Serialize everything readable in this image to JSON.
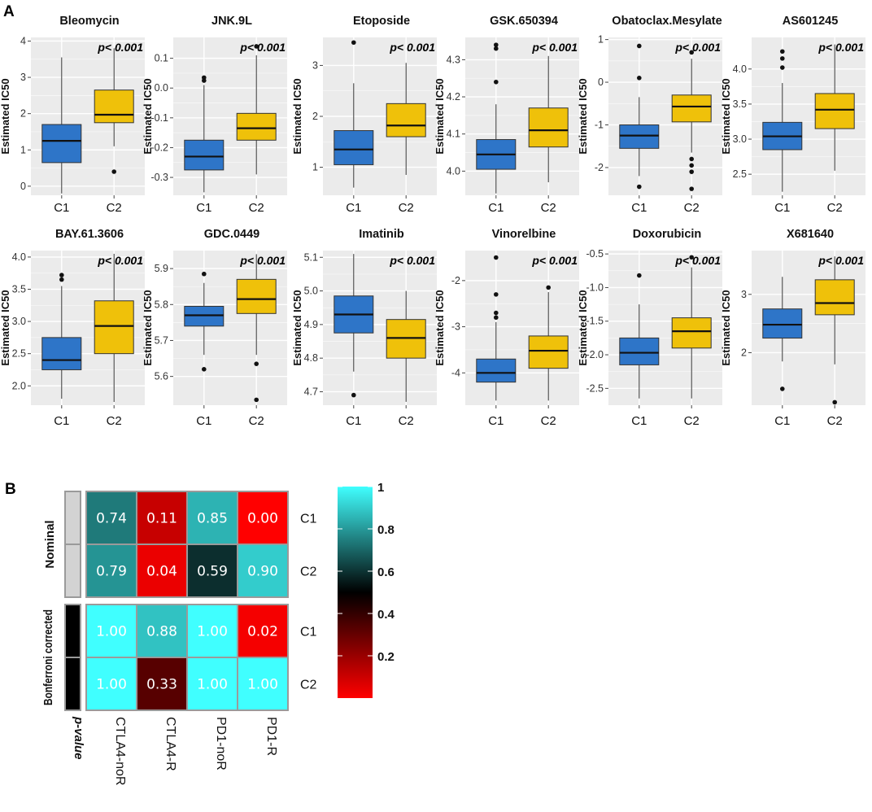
{
  "panel_a_label": "A",
  "panel_b_label": "B",
  "y_axis_label": "Estimated IC50",
  "colors": {
    "C1": "#2E75C8",
    "C2": "#EFC10A",
    "panel_bg": "#EBEBEB",
    "grid": "#FFFFFF"
  },
  "chart_data": [
    {
      "type": "box",
      "title": "Bleomycin",
      "annotation": "p< 0.001",
      "categories": [
        "C1",
        "C2"
      ],
      "ylim": [
        -0.25,
        4.1
      ],
      "yticks": [
        0,
        1,
        2,
        3,
        4
      ],
      "ytick_labels": [
        "0",
        "1",
        "2",
        "3",
        "4"
      ],
      "boxes": [
        {
          "group": "C1",
          "min": -0.2,
          "q1": 0.65,
          "median": 1.25,
          "q3": 1.7,
          "max": 3.55,
          "outliers": []
        },
        {
          "group": "C2",
          "min": 1.1,
          "q1": 1.75,
          "median": 1.97,
          "q3": 2.65,
          "max": 3.8,
          "outliers": [
            0.4
          ]
        }
      ]
    },
    {
      "type": "box",
      "title": "JNK.9L",
      "annotation": "p< 0.001",
      "categories": [
        "C1",
        "C2"
      ],
      "ylim": [
        -0.36,
        0.17
      ],
      "yticks": [
        -0.3,
        -0.2,
        -0.1,
        0.0,
        0.1
      ],
      "ytick_labels": [
        "-0.3",
        "-0.2",
        "-0.1",
        "0.0",
        "0.1"
      ],
      "boxes": [
        {
          "group": "C1",
          "min": -0.35,
          "q1": -0.275,
          "median": -0.23,
          "q3": -0.175,
          "max": 0.01,
          "outliers": [
            0.025,
            0.035
          ]
        },
        {
          "group": "C2",
          "min": -0.29,
          "q1": -0.175,
          "median": -0.135,
          "q3": -0.085,
          "max": 0.11,
          "outliers": [
            0.14
          ]
        }
      ]
    },
    {
      "type": "box",
      "title": "Etoposide",
      "annotation": "p< 0.001",
      "categories": [
        "C1",
        "C2"
      ],
      "ylim": [
        0.45,
        3.55
      ],
      "yticks": [
        1,
        2,
        3
      ],
      "ytick_labels": [
        "1",
        "2",
        "3"
      ],
      "boxes": [
        {
          "group": "C1",
          "min": 0.6,
          "q1": 1.05,
          "median": 1.35,
          "q3": 1.72,
          "max": 2.65,
          "outliers": [
            3.45
          ]
        },
        {
          "group": "C2",
          "min": 0.85,
          "q1": 1.6,
          "median": 1.82,
          "q3": 2.25,
          "max": 3.05,
          "outliers": []
        }
      ]
    },
    {
      "type": "box",
      "title": "GSK.650394",
      "annotation": "p< 0.001",
      "categories": [
        "C1",
        "C2"
      ],
      "ylim": [
        3.935,
        4.36
      ],
      "yticks": [
        4.0,
        4.1,
        4.2,
        4.3
      ],
      "ytick_labels": [
        "4.0",
        "4.1",
        "4.2",
        "4.3"
      ],
      "boxes": [
        {
          "group": "C1",
          "min": 3.94,
          "q1": 4.005,
          "median": 4.045,
          "q3": 4.085,
          "max": 4.18,
          "outliers": [
            4.24,
            4.33,
            4.34
          ]
        },
        {
          "group": "C2",
          "min": 3.97,
          "q1": 4.065,
          "median": 4.11,
          "q3": 4.17,
          "max": 4.31,
          "outliers": []
        }
      ]
    },
    {
      "type": "box",
      "title": "Obatoclax.Mesylate",
      "annotation": "p< 0.001",
      "categories": [
        "C1",
        "C2"
      ],
      "ylim": [
        -2.65,
        1.05
      ],
      "yticks": [
        -2,
        -1,
        0,
        1
      ],
      "ytick_labels": [
        "-2",
        "-1",
        "0",
        "1"
      ],
      "boxes": [
        {
          "group": "C1",
          "min": -2.2,
          "q1": -1.55,
          "median": -1.25,
          "q3": -1.0,
          "max": -0.35,
          "outliers": [
            0.1,
            0.85,
            -2.45
          ]
        },
        {
          "group": "C2",
          "min": -1.65,
          "q1": -0.93,
          "median": -0.57,
          "q3": -0.3,
          "max": 0.55,
          "outliers": [
            0.7,
            -1.8,
            -1.95,
            -2.1,
            -2.5
          ]
        }
      ]
    },
    {
      "type": "box",
      "title": "AS601245",
      "annotation": "p< 0.001",
      "categories": [
        "C1",
        "C2"
      ],
      "ylim": [
        2.2,
        4.45
      ],
      "yticks": [
        2.5,
        3.0,
        3.5,
        4.0
      ],
      "ytick_labels": [
        "2.5",
        "3.0",
        "3.5",
        "4.0"
      ],
      "boxes": [
        {
          "group": "C1",
          "min": 2.25,
          "q1": 2.85,
          "median": 3.04,
          "q3": 3.24,
          "max": 3.8,
          "outliers": [
            4.02,
            4.15,
            4.25
          ]
        },
        {
          "group": "C2",
          "min": 2.55,
          "q1": 3.15,
          "median": 3.42,
          "q3": 3.65,
          "max": 4.35,
          "outliers": []
        }
      ]
    },
    {
      "type": "box",
      "title": "BAY.61.3606",
      "annotation": "p< 0.001",
      "categories": [
        "C1",
        "C2"
      ],
      "ylim": [
        1.7,
        4.1
      ],
      "yticks": [
        2.0,
        2.5,
        3.0,
        3.5,
        4.0
      ],
      "ytick_labels": [
        "2.0",
        "2.5",
        "3.0",
        "3.5",
        "4.0"
      ],
      "boxes": [
        {
          "group": "C1",
          "min": 1.8,
          "q1": 2.25,
          "median": 2.4,
          "q3": 2.75,
          "max": 3.55,
          "outliers": [
            3.65,
            3.72
          ]
        },
        {
          "group": "C2",
          "min": 1.75,
          "q1": 2.5,
          "median": 2.93,
          "q3": 3.32,
          "max": 4.05,
          "outliers": []
        }
      ]
    },
    {
      "type": "box",
      "title": "GDC.0449",
      "annotation": "p< 0.001",
      "categories": [
        "C1",
        "C2"
      ],
      "ylim": [
        5.52,
        5.95
      ],
      "yticks": [
        5.6,
        5.7,
        5.8,
        5.9
      ],
      "ytick_labels": [
        "5.6",
        "5.7",
        "5.8",
        "5.9"
      ],
      "boxes": [
        {
          "group": "C1",
          "min": 5.66,
          "q1": 5.74,
          "median": 5.77,
          "q3": 5.795,
          "max": 5.86,
          "outliers": [
            5.885,
            5.62
          ]
        },
        {
          "group": "C2",
          "min": 5.66,
          "q1": 5.775,
          "median": 5.815,
          "q3": 5.87,
          "max": 5.94,
          "outliers": [
            5.635,
            5.535
          ]
        }
      ]
    },
    {
      "type": "box",
      "title": "Imatinib",
      "annotation": "p< 0.001",
      "categories": [
        "C1",
        "C2"
      ],
      "ylim": [
        4.66,
        5.12
      ],
      "yticks": [
        4.7,
        4.8,
        4.9,
        5.0,
        5.1
      ],
      "ytick_labels": [
        "4.7",
        "4.8",
        "4.9",
        "5.0",
        "5.1"
      ],
      "boxes": [
        {
          "group": "C1",
          "min": 4.76,
          "q1": 4.875,
          "median": 4.93,
          "q3": 4.985,
          "max": 5.11,
          "outliers": [
            4.69
          ]
        },
        {
          "group": "C2",
          "min": 4.67,
          "q1": 4.8,
          "median": 4.86,
          "q3": 4.915,
          "max": 5.0,
          "outliers": []
        }
      ]
    },
    {
      "type": "box",
      "title": "Vinorelbine",
      "annotation": "p< 0.001",
      "categories": [
        "C1",
        "C2"
      ],
      "ylim": [
        -4.7,
        -1.35
      ],
      "yticks": [
        -4,
        -3,
        -2
      ],
      "ytick_labels": [
        "-4",
        "-3",
        "-2"
      ],
      "boxes": [
        {
          "group": "C1",
          "min": -4.6,
          "q1": -4.2,
          "median": -4.0,
          "q3": -3.7,
          "max": -2.9,
          "outliers": [
            -1.5,
            -2.3,
            -2.7,
            -2.8
          ]
        },
        {
          "group": "C2",
          "min": -4.6,
          "q1": -3.9,
          "median": -3.52,
          "q3": -3.2,
          "max": -2.25,
          "outliers": [
            -2.15
          ]
        }
      ]
    },
    {
      "type": "box",
      "title": "Doxorubicin",
      "annotation": "p< 0.001",
      "categories": [
        "C1",
        "C2"
      ],
      "ylim": [
        -2.75,
        -0.45
      ],
      "yticks": [
        -2.5,
        -2.0,
        -1.5,
        -1.0,
        -0.5
      ],
      "ytick_labels": [
        "-2.5",
        "-2.0",
        "-1.5",
        "-1.0",
        "-0.5"
      ],
      "boxes": [
        {
          "group": "C1",
          "min": -2.65,
          "q1": -2.15,
          "median": -1.97,
          "q3": -1.75,
          "max": -1.25,
          "outliers": [
            -0.82
          ]
        },
        {
          "group": "C2",
          "min": -2.65,
          "q1": -1.9,
          "median": -1.65,
          "q3": -1.45,
          "max": -0.7,
          "outliers": [
            -0.55
          ]
        }
      ]
    },
    {
      "type": "box",
      "title": "X681640",
      "annotation": "p< 0.001",
      "categories": [
        "C1",
        "C2"
      ],
      "ylim": [
        1.1,
        3.75
      ],
      "yticks": [
        2,
        3
      ],
      "ytick_labels": [
        "2",
        "3"
      ],
      "boxes": [
        {
          "group": "C1",
          "min": 1.85,
          "q1": 2.25,
          "median": 2.48,
          "q3": 2.75,
          "max": 3.3,
          "outliers": [
            1.38
          ]
        },
        {
          "group": "C2",
          "min": 1.8,
          "q1": 2.65,
          "median": 2.85,
          "q3": 3.25,
          "max": 3.65,
          "outliers": [
            1.15
          ]
        }
      ]
    },
    {
      "type": "heatmap",
      "title": "",
      "columns": [
        "CTLA4-noR",
        "CTLA4-R",
        "PD1-noR",
        "PD1-R"
      ],
      "row_labels": [
        "C1",
        "C2",
        "C1",
        "C2"
      ],
      "row_groups": [
        {
          "name": "Nominal",
          "rows": [
            0,
            1
          ],
          "color": "#D3D3D3"
        },
        {
          "name": "Bonferroni corrected",
          "rows": [
            2,
            3
          ],
          "color": "#000000"
        }
      ],
      "annotation_title": "p-value",
      "values": [
        [
          0.74,
          0.11,
          0.85,
          0.0
        ],
        [
          0.79,
          0.04,
          0.59,
          0.9
        ],
        [
          1.0,
          0.88,
          1.0,
          0.02
        ],
        [
          1.0,
          0.33,
          1.0,
          1.0
        ]
      ],
      "value_labels": [
        [
          "0.74",
          "0.11",
          "0.85",
          "0.00"
        ],
        [
          "0.79",
          "0.04",
          "0.59",
          "0.90"
        ],
        [
          "1.00",
          "0.88",
          "1.00",
          "0.02"
        ],
        [
          "1.00",
          "0.33",
          "1.00",
          "1.00"
        ]
      ],
      "colorbar": {
        "ticks": [
          0.2,
          0.4,
          0.6,
          0.8,
          1
        ],
        "tick_labels": [
          "0.2",
          "0.4",
          "0.6",
          "0.8",
          "1"
        ],
        "stops": [
          {
            "v": 0.0,
            "color": "#FF0000"
          },
          {
            "v": 0.5,
            "color": "#000000"
          },
          {
            "v": 1.0,
            "color": "#40FFFF"
          }
        ]
      }
    }
  ]
}
